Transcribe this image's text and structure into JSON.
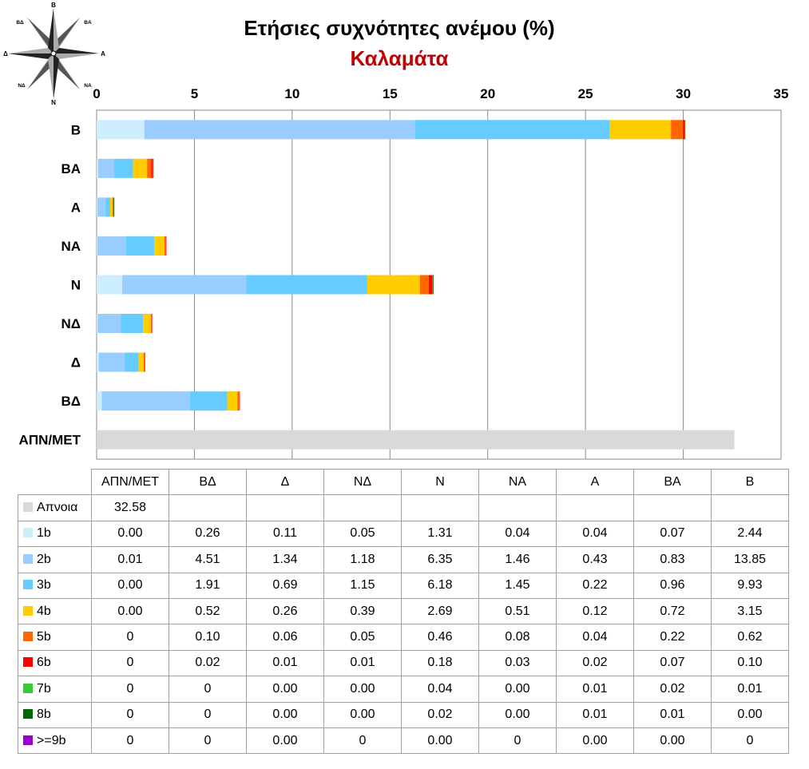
{
  "title": "Ετήσιες συχνότητες ανέμου (%)",
  "subtitle": "Καλαμάτα",
  "compass": {
    "labels": {
      "n": "Β",
      "ne": "ΒΑ",
      "e": "Α",
      "se": "ΝΑ",
      "s": "Ν",
      "sw": "ΝΔ",
      "w": "Δ",
      "nw": "ΒΔ"
    }
  },
  "chart_data": {
    "type": "bar",
    "orientation": "horizontal",
    "stacked": true,
    "categories": [
      "Β",
      "ΒΑ",
      "Α",
      "ΝΑ",
      "Ν",
      "ΝΔ",
      "Δ",
      "ΒΔ",
      "ΑΠΝ/ΜΕΤ"
    ],
    "xlim": [
      0,
      35
    ],
    "xticks": [
      0,
      5,
      10,
      15,
      20,
      25,
      30,
      35
    ],
    "xaxis_position": "top",
    "grid": "vertical",
    "series": [
      {
        "name": "Απνοια",
        "color": "#d9d9d9",
        "values": [
          0,
          0,
          0,
          0,
          0,
          0,
          0,
          0,
          32.58
        ]
      },
      {
        "name": "1b",
        "color": "#cceeff",
        "values": [
          2.44,
          0.07,
          0.04,
          0.04,
          1.31,
          0.05,
          0.11,
          0.26,
          0.0
        ]
      },
      {
        "name": "2b",
        "color": "#99ccff",
        "values": [
          13.85,
          0.83,
          0.43,
          1.46,
          6.35,
          1.18,
          1.34,
          4.51,
          0.01
        ]
      },
      {
        "name": "3b",
        "color": "#66ccff",
        "values": [
          9.93,
          0.96,
          0.22,
          1.45,
          6.18,
          1.15,
          0.69,
          1.91,
          0.0
        ]
      },
      {
        "name": "4b",
        "color": "#ffcc00",
        "values": [
          3.15,
          0.72,
          0.12,
          0.51,
          2.69,
          0.39,
          0.26,
          0.52,
          0.0
        ]
      },
      {
        "name": "5b",
        "color": "#ff6600",
        "values": [
          0.62,
          0.22,
          0.04,
          0.08,
          0.46,
          0.05,
          0.06,
          0.1,
          0
        ]
      },
      {
        "name": "6b",
        "color": "#ff0000",
        "values": [
          0.1,
          0.07,
          0.02,
          0.03,
          0.18,
          0.01,
          0.01,
          0.02,
          0
        ]
      },
      {
        "name": "7b",
        "color": "#33cc33",
        "values": [
          0.01,
          0.02,
          0.01,
          0.0,
          0.04,
          0.0,
          0.0,
          0,
          0
        ]
      },
      {
        "name": "8b",
        "color": "#006600",
        "values": [
          0.0,
          0.01,
          0.01,
          0.0,
          0.02,
          0.0,
          0.0,
          0,
          0
        ]
      },
      {
        "name": ">=9b",
        "color": "#9900cc",
        "values": [
          0,
          0.0,
          0.0,
          0,
          0.0,
          0,
          0.0,
          0,
          0
        ]
      }
    ]
  },
  "table": {
    "columns": [
      "ΑΠΝ/ΜΕΤ",
      "ΒΔ",
      "Δ",
      "ΝΔ",
      "Ν",
      "ΝΑ",
      "Α",
      "ΒΑ",
      "Β"
    ],
    "rows": [
      {
        "label": "Απνοια",
        "color": "#d9d9d9",
        "cells": [
          "32.58",
          "",
          "",
          "",
          "",
          "",
          "",
          "",
          ""
        ]
      },
      {
        "label": "1b",
        "color": "#cceeff",
        "cells": [
          "0.00",
          "0.26",
          "0.11",
          "0.05",
          "1.31",
          "0.04",
          "0.04",
          "0.07",
          "2.44"
        ]
      },
      {
        "label": "2b",
        "color": "#99ccff",
        "cells": [
          "0.01",
          "4.51",
          "1.34",
          "1.18",
          "6.35",
          "1.46",
          "0.43",
          "0.83",
          "13.85"
        ]
      },
      {
        "label": "3b",
        "color": "#66ccff",
        "cells": [
          "0.00",
          "1.91",
          "0.69",
          "1.15",
          "6.18",
          "1.45",
          "0.22",
          "0.96",
          "9.93"
        ]
      },
      {
        "label": "4b",
        "color": "#ffcc00",
        "cells": [
          "0.00",
          "0.52",
          "0.26",
          "0.39",
          "2.69",
          "0.51",
          "0.12",
          "0.72",
          "3.15"
        ]
      },
      {
        "label": "5b",
        "color": "#ff6600",
        "cells": [
          "0",
          "0.10",
          "0.06",
          "0.05",
          "0.46",
          "0.08",
          "0.04",
          "0.22",
          "0.62"
        ]
      },
      {
        "label": "6b",
        "color": "#ff0000",
        "cells": [
          "0",
          "0.02",
          "0.01",
          "0.01",
          "0.18",
          "0.03",
          "0.02",
          "0.07",
          "0.10"
        ]
      },
      {
        "label": "7b",
        "color": "#33cc33",
        "cells": [
          "0",
          "0",
          "0.00",
          "0.00",
          "0.04",
          "0.00",
          "0.01",
          "0.02",
          "0.01"
        ]
      },
      {
        "label": "8b",
        "color": "#006600",
        "cells": [
          "0",
          "0",
          "0.00",
          "0.00",
          "0.02",
          "0.00",
          "0.01",
          "0.01",
          "0.00"
        ]
      },
      {
        "label": ">=9b",
        "color": "#9900cc",
        "cells": [
          "0",
          "0",
          "0.00",
          "0",
          "0.00",
          "0",
          "0.00",
          "0.00",
          "0"
        ]
      }
    ]
  }
}
